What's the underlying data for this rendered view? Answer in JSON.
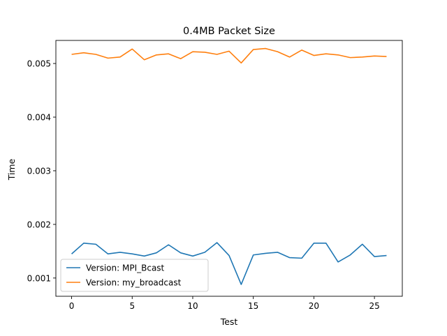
{
  "chart_data": {
    "type": "line",
    "title": "0.4MB Packet Size",
    "xlabel": "Test",
    "ylabel": "Time",
    "xlim": [
      -1.3,
      27.3
    ],
    "ylim": [
      0.00066,
      0.00543
    ],
    "xticks": [
      0,
      5,
      10,
      15,
      20,
      25
    ],
    "xtick_labels": [
      "0",
      "5",
      "10",
      "15",
      "20",
      "25"
    ],
    "yticks": [
      0.001,
      0.002,
      0.003,
      0.004,
      0.005
    ],
    "ytick_labels": [
      "0.001",
      "0.002",
      "0.003",
      "0.004",
      "0.005"
    ],
    "grid": false,
    "legend_position": "lower-left",
    "x": [
      0,
      1,
      2,
      3,
      4,
      5,
      6,
      7,
      8,
      9,
      10,
      11,
      12,
      13,
      14,
      15,
      16,
      17,
      18,
      19,
      20,
      21,
      22,
      23,
      24,
      25,
      26
    ],
    "series": [
      {
        "name": "Version: MPI_Bcast",
        "color": "#1f77b4",
        "values": [
          0.00145,
          0.00165,
          0.00163,
          0.00145,
          0.00148,
          0.00145,
          0.00141,
          0.00147,
          0.00162,
          0.00147,
          0.00141,
          0.00148,
          0.00166,
          0.00142,
          0.00088,
          0.00143,
          0.00146,
          0.00148,
          0.00138,
          0.00137,
          0.00165,
          0.00165,
          0.0013,
          0.00143,
          0.00163,
          0.0014,
          0.00142
        ]
      },
      {
        "name": "Version: my_broadcast",
        "color": "#ff7f0e",
        "values": [
          0.00517,
          0.0052,
          0.00517,
          0.0051,
          0.00512,
          0.00527,
          0.00507,
          0.00516,
          0.00518,
          0.00509,
          0.00522,
          0.00521,
          0.00517,
          0.00523,
          0.00501,
          0.00526,
          0.00528,
          0.00522,
          0.00512,
          0.00525,
          0.00515,
          0.00518,
          0.00516,
          0.00511,
          0.00512,
          0.00514,
          0.00513
        ]
      }
    ]
  }
}
